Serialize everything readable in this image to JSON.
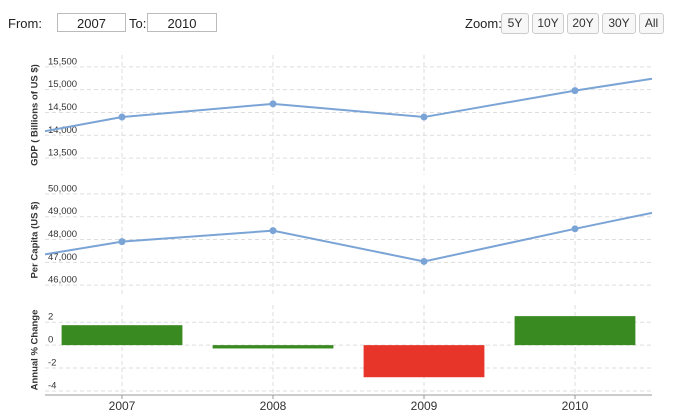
{
  "controls": {
    "from_label": "From:",
    "from_value": "2007",
    "to_label": "To:",
    "to_value": "2010",
    "zoom_label": "Zoom:",
    "zoom_buttons": [
      "5Y",
      "10Y",
      "20Y",
      "30Y",
      "All"
    ]
  },
  "chart_data": [
    {
      "type": "line",
      "y_label": "GDP ( Billions of US $)",
      "x": [
        2006.49,
        2007,
        2008,
        2009,
        2010,
        2010.51
      ],
      "xlim": [
        2006.49,
        2010.51
      ],
      "series": [
        {
          "name": "GDP",
          "color": "#7ba4d6",
          "values": [
            14090,
            14400,
            14690,
            14400,
            14980,
            15240
          ]
        }
      ],
      "ylim": [
        13130,
        15760
      ],
      "yticks": [
        {
          "value": 13500,
          "label": "13,500"
        },
        {
          "value": 14000,
          "label": "14,000"
        },
        {
          "value": 14500,
          "label": "14,500"
        },
        {
          "value": 15000,
          "label": "15,000"
        },
        {
          "value": 15500,
          "label": "15,500"
        }
      ],
      "grid": true
    },
    {
      "type": "line",
      "y_label": "Per Capita (US $)",
      "x": [
        2006.49,
        2007,
        2008,
        2009,
        2010,
        2010.51
      ],
      "xlim": [
        2006.49,
        2010.51
      ],
      "series": [
        {
          "name": "Per Capita",
          "color": "#7ba4d6",
          "values": [
            47350,
            47910,
            48390,
            47040,
            48470,
            49170
          ]
        }
      ],
      "ylim": [
        45570,
        50390
      ],
      "yticks": [
        {
          "value": 46000,
          "label": "46,000"
        },
        {
          "value": 47000,
          "label": "47,000"
        },
        {
          "value": 48000,
          "label": "48,000"
        },
        {
          "value": 49000,
          "label": "49,000"
        },
        {
          "value": 50000,
          "label": "50,000"
        }
      ],
      "grid": true
    },
    {
      "type": "bar",
      "y_label": "Annual % Change",
      "x": [
        2007,
        2008,
        2009,
        2010
      ],
      "xlim": [
        2006.49,
        2010.51
      ],
      "values": [
        1.74,
        -0.29,
        -2.8,
        2.53
      ],
      "colors": [
        "#3a8a22",
        "#3a8a22",
        "#e8352a",
        "#3a8a22"
      ],
      "ylim": [
        -4.35,
        3.5
      ],
      "yticks": [
        -4,
        -2,
        0,
        2
      ],
      "xticks": [
        2007,
        2008,
        2009,
        2010
      ],
      "grid": true
    }
  ]
}
